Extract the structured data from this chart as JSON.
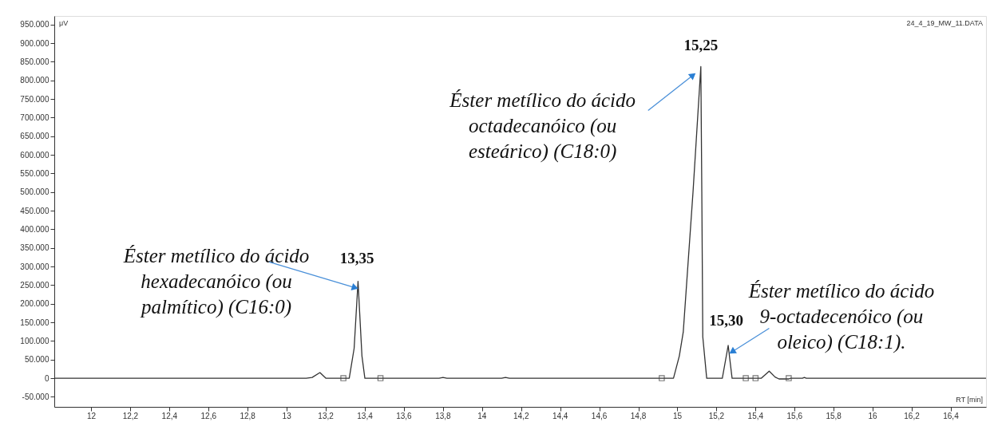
{
  "chart_data": {
    "type": "line",
    "xlabel": "RT [min]",
    "ylabel": "μV",
    "xlim": [
      11.81,
      16.58
    ],
    "ylim": [
      -77000,
      973000
    ],
    "xticks": [
      12,
      {
        "value": 12.2,
        "label": "12,2"
      },
      {
        "value": 12.4,
        "label": "12,4"
      },
      {
        "value": 12.6,
        "label": "12,6"
      },
      {
        "value": 12.8,
        "label": "12,8"
      },
      13,
      {
        "value": 13.2,
        "label": "13,2"
      },
      {
        "value": 13.4,
        "label": "13,4"
      },
      {
        "value": 13.6,
        "label": "13,6"
      },
      {
        "value": 13.8,
        "label": "13,8"
      },
      14,
      {
        "value": 14.2,
        "label": "14,2"
      },
      {
        "value": 14.4,
        "label": "14,4"
      },
      {
        "value": 14.6,
        "label": "14,6"
      },
      {
        "value": 14.8,
        "label": "14,8"
      },
      15,
      {
        "value": 15.2,
        "label": "15,2"
      },
      {
        "value": 15.4,
        "label": "15,4"
      },
      {
        "value": 15.6,
        "label": "15,6"
      },
      {
        "value": 15.8,
        "label": "15,8"
      },
      16,
      {
        "value": 16.2,
        "label": "16,2"
      },
      {
        "value": 16.4,
        "label": "16,4"
      }
    ],
    "yticks": [
      {
        "value": -50000,
        "label": "-50.000"
      },
      0,
      {
        "value": 50000,
        "label": "50.000"
      },
      {
        "value": 100000,
        "label": "100.000"
      },
      {
        "value": 150000,
        "label": "150.000"
      },
      {
        "value": 200000,
        "label": "200.000"
      },
      {
        "value": 250000,
        "label": "250.000"
      },
      {
        "value": 300000,
        "label": "300.000"
      },
      {
        "value": 350000,
        "label": "350.000"
      },
      {
        "value": 400000,
        "label": "400.000"
      },
      {
        "value": 450000,
        "label": "450.000"
      },
      {
        "value": 500000,
        "label": "500.000"
      },
      {
        "value": 550000,
        "label": "550.000"
      },
      {
        "value": 600000,
        "label": "600.000"
      },
      {
        "value": 650000,
        "label": "650.000"
      },
      {
        "value": 700000,
        "label": "700.000"
      },
      {
        "value": 750000,
        "label": "750.000"
      },
      {
        "value": 800000,
        "label": "800.000"
      },
      {
        "value": 850000,
        "label": "850.000"
      },
      {
        "value": 900000,
        "label": "900.000"
      },
      {
        "value": 950000,
        "label": "950.000"
      }
    ],
    "grid": false,
    "line_style": "solid",
    "series": [
      {
        "color": "#333333",
        "marker": "none",
        "x": [
          11.81,
          13.1,
          13.13,
          13.17,
          13.2,
          13.32,
          13.345,
          13.365,
          13.385,
          13.4,
          13.78,
          13.8,
          13.82,
          14.1,
          14.12,
          14.14,
          14.98,
          15.01,
          15.03,
          15.08,
          15.12,
          15.125,
          15.13,
          15.15,
          15.23,
          15.26,
          15.28,
          15.43,
          15.47,
          15.5,
          15.52,
          15.57,
          15.58,
          15.64,
          15.65,
          15.66,
          16.58
        ],
        "values": [
          0,
          0,
          2000,
          15000,
          0,
          0,
          80000,
          260000,
          60000,
          0,
          0,
          2000,
          0,
          0,
          2000,
          0,
          0,
          60000,
          124000,
          500000,
          837000,
          500000,
          111000,
          0,
          0,
          88000,
          0,
          0,
          19000,
          3000,
          -2000,
          -2000,
          0,
          0,
          2000,
          0,
          0
        ]
      },
      {
        "type": "scatter",
        "color": "#404040",
        "marker": "square",
        "x": [
          13.29,
          13.48,
          14.92,
          15.35,
          15.4,
          15.57
        ],
        "values": [
          0,
          0,
          0,
          0,
          0,
          0
        ]
      }
    ],
    "annotations": [
      {
        "text": "Éster metílico do ácido\nhexadecanóico (ou\npalmítico) (C16:0)",
        "x": 13.35,
        "y": 243000
      },
      {
        "text": "Éster metílico do ácido\noctadecanóico (ou\nesteárico) (C18:0)",
        "x": 15.08,
        "y": 814000
      },
      {
        "text": "Éster metílico do ácido\n9-octadecenóico (ou\noleico) (C18:1).",
        "x": 15.28,
        "y": 71000
      },
      {
        "text": "13,35",
        "x": 13.37,
        "y": 260000
      },
      {
        "text": "15,25",
        "x": 15.12,
        "y": 837000
      },
      {
        "text": "15,30",
        "x": 15.26,
        "y": 88000
      },
      "24_4_19_MW_11.DATA"
    ]
  }
}
